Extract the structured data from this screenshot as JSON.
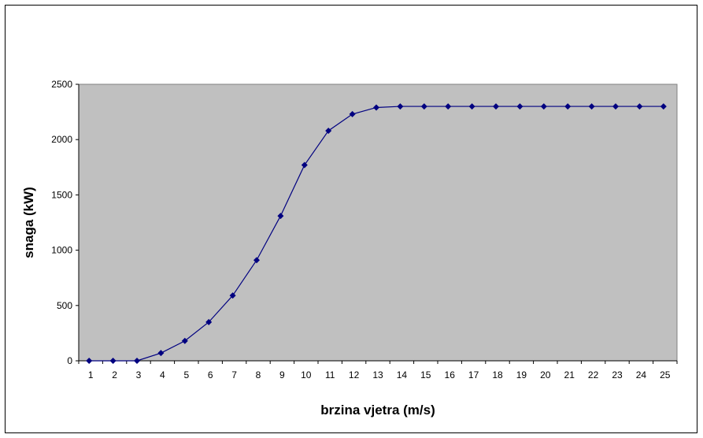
{
  "chart_data": {
    "type": "line",
    "title": "",
    "xlabel": "brzina vjetra (m/s)",
    "ylabel": "snaga (kW)",
    "categories": [
      "1",
      "2",
      "3",
      "4",
      "5",
      "6",
      "7",
      "8",
      "9",
      "10",
      "11",
      "12",
      "13",
      "14",
      "15",
      "16",
      "17",
      "18",
      "19",
      "20",
      "21",
      "22",
      "23",
      "24",
      "25"
    ],
    "series": [
      {
        "values": [
          0,
          0,
          0,
          70,
          180,
          350,
          590,
          910,
          1310,
          1770,
          2080,
          2230,
          2290,
          2300,
          2300,
          2300,
          2300,
          2300,
          2300,
          2300,
          2300,
          2300,
          2300,
          2300,
          2300
        ],
        "color": "#000080"
      }
    ],
    "ylim": [
      0,
      2500
    ],
    "yticks": [
      0,
      500,
      1000,
      1500,
      2000,
      2500
    ],
    "grid": false,
    "legend": "none",
    "plot_background": "#c0c0c0"
  }
}
